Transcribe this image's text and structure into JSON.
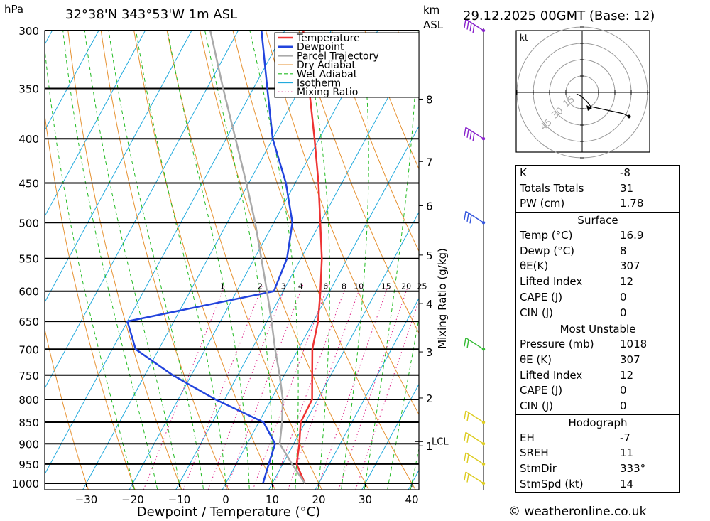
{
  "header": {
    "pressure_unit": "hPa",
    "location": "32°38'N  343°53'W  1m  ASL",
    "height_unit_top": "km",
    "height_unit_bottom": "ASL",
    "datetime": "29.12.2025  00GMT  (Base: 12)"
  },
  "legend": [
    {
      "label": "Temperature",
      "color": "#ee3333",
      "style": "solid"
    },
    {
      "label": "Dewpoint",
      "color": "#2244dd",
      "style": "solid"
    },
    {
      "label": "Parcel Trajectory",
      "color": "#aaaaaa",
      "style": "solid"
    },
    {
      "label": "Dry Adiabat",
      "color": "#e69232",
      "style": "solid"
    },
    {
      "label": "Wet Adiabat",
      "color": "#22bb22",
      "style": "dashed"
    },
    {
      "label": "Isotherm",
      "color": "#22aadd",
      "style": "solid"
    },
    {
      "label": "Mixing Ratio",
      "color": "#dd2288",
      "style": "dotted"
    }
  ],
  "chart_data": {
    "type": "line",
    "title": "",
    "xlabel": "Dewpoint / Temperature (°C)",
    "ylabel": "",
    "xlim": [
      -40,
      40
    ],
    "ylim": [
      1000,
      300
    ],
    "y_scale": "log-pressure (skew-T)",
    "x_ticks": [
      "−30",
      "−20",
      "−10",
      "0",
      "10",
      "20",
      "30",
      "40"
    ],
    "pressure_levels": [
      300,
      350,
      400,
      450,
      500,
      550,
      600,
      650,
      700,
      750,
      800,
      850,
      900,
      950,
      1000
    ],
    "height_km_labels": [
      {
        "km": "8",
        "p": 360
      },
      {
        "km": "7",
        "p": 425
      },
      {
        "km": "6",
        "p": 478
      },
      {
        "km": "5",
        "p": 545
      },
      {
        "km": "4",
        "p": 620
      },
      {
        "km": "3",
        "p": 705
      },
      {
        "km": "2",
        "p": 797
      },
      {
        "km": "1",
        "p": 905
      }
    ],
    "lcl_label": "LCL",
    "lcl_pressure": 895,
    "mixing_ratio_title": "Mixing Ratio (g/kg)",
    "mixing_ratio_labels": [
      "1",
      "2",
      "3",
      "4",
      "6",
      "8",
      "10",
      "15",
      "20",
      "25"
    ],
    "series": [
      {
        "name": "Temperature",
        "color": "#ee3333",
        "points": [
          [
            17,
            1000
          ],
          [
            13,
            950
          ],
          [
            11.2,
            900
          ],
          [
            9,
            850
          ],
          [
            8.8,
            800
          ],
          [
            6,
            750
          ],
          [
            3,
            700
          ],
          [
            1,
            650
          ],
          [
            -2,
            600
          ],
          [
            -5.5,
            550
          ],
          [
            -10,
            500
          ],
          [
            -15,
            450
          ],
          [
            -21,
            400
          ],
          [
            -28,
            350
          ],
          [
            -36,
            300
          ]
        ]
      },
      {
        "name": "Dewpoint",
        "color": "#2244dd",
        "points": [
          [
            8,
            1000
          ],
          [
            7,
            950
          ],
          [
            6,
            900
          ],
          [
            1,
            850
          ],
          [
            -12,
            800
          ],
          [
            -24,
            750
          ],
          [
            -35,
            700
          ],
          [
            -40,
            650
          ],
          [
            -12,
            600
          ],
          [
            -13,
            550
          ],
          [
            -16,
            500
          ],
          [
            -22,
            450
          ],
          [
            -30,
            400
          ],
          [
            -37,
            350
          ],
          [
            -45,
            300
          ]
        ]
      },
      {
        "name": "Parcel Trajectory",
        "color": "#aaaaaa",
        "points": [
          [
            17,
            1000
          ],
          [
            12,
            950
          ],
          [
            7,
            900
          ],
          [
            5,
            850
          ],
          [
            2.5,
            800
          ],
          [
            -1,
            750
          ],
          [
            -5,
            700
          ],
          [
            -9,
            650
          ],
          [
            -13.5,
            600
          ],
          [
            -18.5,
            550
          ],
          [
            -24,
            500
          ],
          [
            -30.5,
            450
          ],
          [
            -38,
            400
          ],
          [
            -46.5,
            350
          ],
          [
            -56,
            300
          ]
        ]
      }
    ],
    "wind_barbs": [
      {
        "p": 300,
        "color": "#8822cc"
      },
      {
        "p": 400,
        "color": "#8822cc"
      },
      {
        "p": 500,
        "color": "#3355dd"
      },
      {
        "p": 700,
        "color": "#33bb33"
      },
      {
        "p": 850,
        "color": "#ddcc22"
      },
      {
        "p": 900,
        "color": "#ddcc22"
      },
      {
        "p": 950,
        "color": "#ddcc22"
      },
      {
        "p": 1000,
        "color": "#ddcc22"
      }
    ]
  },
  "hodograph": {
    "unit": "kt",
    "ring_labels": [
      "15",
      "30",
      "45"
    ]
  },
  "indices": {
    "rows": [
      {
        "label": "K",
        "value": "-8"
      },
      {
        "label": "Totals Totals",
        "value": "31"
      },
      {
        "label": "PW (cm)",
        "value": "1.78"
      }
    ],
    "surface": {
      "title": "Surface",
      "rows": [
        {
          "label": "Temp (°C)",
          "value": "16.9"
        },
        {
          "label": "Dewp (°C)",
          "value": "8"
        },
        {
          "label": "θE(K)",
          "value": "307"
        },
        {
          "label": "Lifted Index",
          "value": "12"
        },
        {
          "label": "CAPE (J)",
          "value": "0"
        },
        {
          "label": "CIN (J)",
          "value": "0"
        }
      ]
    },
    "most_unstable": {
      "title": "Most Unstable",
      "rows": [
        {
          "label": "Pressure (mb)",
          "value": "1018"
        },
        {
          "label": "θE (K)",
          "value": "307"
        },
        {
          "label": "Lifted Index",
          "value": "12"
        },
        {
          "label": "CAPE (J)",
          "value": "0"
        },
        {
          "label": "CIN (J)",
          "value": "0"
        }
      ]
    },
    "hodograph_params": {
      "title": "Hodograph",
      "rows": [
        {
          "label": "EH",
          "value": "-7"
        },
        {
          "label": "SREH",
          "value": "11"
        },
        {
          "label": "StmDir",
          "value": "333°"
        },
        {
          "label": "StmSpd (kt)",
          "value": "14"
        }
      ]
    }
  },
  "footer": {
    "credit": "© weatheronline.co.uk"
  }
}
